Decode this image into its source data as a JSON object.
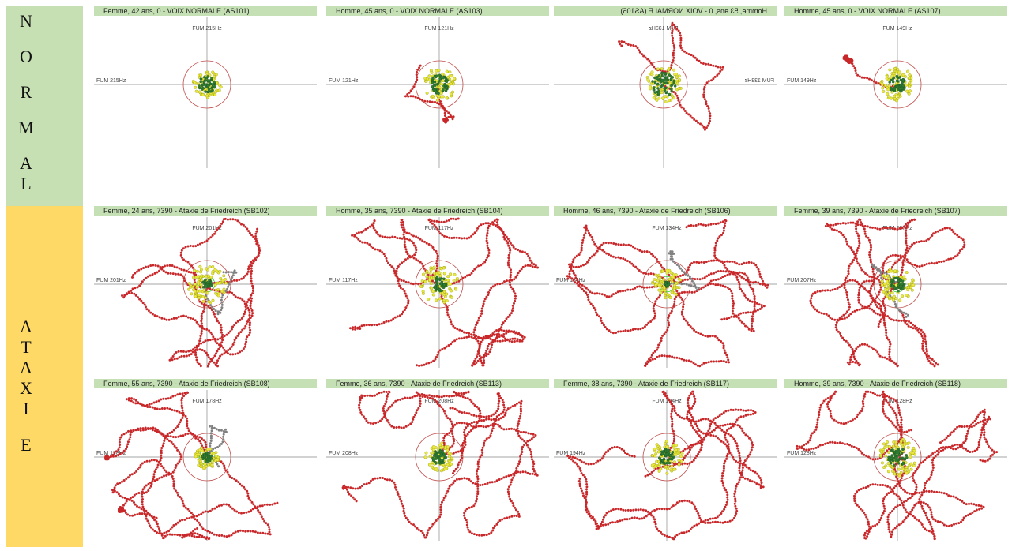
{
  "band_normal": {
    "letters": [
      "N",
      "O",
      "R",
      "M",
      "A",
      "L"
    ]
  },
  "band_ataxie": {
    "letters": [
      "A",
      "T",
      "A",
      "X",
      "I",
      "E"
    ]
  },
  "colors": {
    "band_normal": "#c6e0b4",
    "band_ataxie": "#ffd966",
    "header": "#c5e0b4",
    "axis": "#888888",
    "ref_circle": "#c0504d",
    "inner_circle": "#22cc22",
    "point_red": "#c8282a",
    "point_yellow": "#e8e840",
    "point_green": "#2e7d32",
    "point_gray": "#808080"
  },
  "chart_data": [
    {
      "type": "scatter",
      "title": "Femme, 42 ans,  0 -  VOIX NORMALE (AS101)",
      "x_axis_label": "FUM 215Hz",
      "y_axis_label": "FUM 215Hz",
      "mirrored": false,
      "inner_circle": false,
      "spread_red": 0,
      "spread_yellow": 0.6,
      "spread_green": 0.35
    },
    {
      "type": "scatter",
      "title": "Homme, 45 ans,  0 -  VOIX NORMALE (AS103)",
      "x_axis_label": "FUM 121Hz",
      "y_axis_label": "FUM 121Hz",
      "mirrored": false,
      "inner_circle": false,
      "spread_red": 0.15,
      "spread_yellow": 0.7,
      "spread_green": 0.4
    },
    {
      "type": "scatter",
      "title": "Homme, 53 ans,  0 -  VOIX NORMALE (AS105)",
      "x_axis_label": "FUM 133Hz",
      "y_axis_label": "FUM 133Hz",
      "mirrored": true,
      "inner_circle": false,
      "spread_red": 0.5,
      "spread_yellow": 0.75,
      "spread_green": 0.5
    },
    {
      "type": "scatter",
      "title": "Homme, 45 ans,  0 -  VOIX NORMALE (AS107)",
      "x_axis_label": "FUM 149Hz",
      "y_axis_label": "FUM 149Hz",
      "mirrored": false,
      "inner_circle": false,
      "spread_red": 0.35,
      "spread_yellow": 0.7,
      "spread_green": 0.35
    },
    {
      "type": "scatter",
      "title": "Femme, 24 ans, 7390 -  Ataxie de Friedreich (SB102)",
      "x_axis_label": "FUM 201Hz",
      "y_axis_label": "FUM 201Hz",
      "mirrored": false,
      "inner_circle": true,
      "spread_red": 0.8,
      "spread_yellow": 0.8,
      "spread_green": 0.2
    },
    {
      "type": "scatter",
      "title": "Homme, 35 ans, 7390 -  Ataxie de Friedreich (SB104)",
      "x_axis_label": "FUM 117Hz",
      "y_axis_label": "FUM 117Hz",
      "mirrored": false,
      "inner_circle": false,
      "spread_red": 1.0,
      "spread_yellow": 0.8,
      "spread_green": 0.3
    },
    {
      "type": "scatter",
      "title": "Homme, 46 ans, 7390 -  Ataxie de Friedreich (SB106)",
      "x_axis_label": "FUM 134Hz",
      "y_axis_label": "FUM 134Hz",
      "mirrored": false,
      "inner_circle": true,
      "spread_red": 1.0,
      "spread_yellow": 0.6,
      "spread_green": 0.1
    },
    {
      "type": "scatter",
      "title": "Femme, 39 ans, 7390 -  Ataxie de Friedreich (SB107)",
      "x_axis_label": "FUM 207Hz",
      "y_axis_label": "FUM 207Hz",
      "mirrored": false,
      "inner_circle": true,
      "spread_red": 0.9,
      "spread_yellow": 0.7,
      "spread_green": 0.3
    },
    {
      "type": "scatter",
      "title": "Femme, 55 ans, 7390 -  Ataxie de Friedreich (SB108)",
      "x_axis_label": "FUM 178Hz",
      "y_axis_label": "FUM 178Hz",
      "mirrored": false,
      "inner_circle": true,
      "spread_red": 1.0,
      "spread_yellow": 0.5,
      "spread_green": 0.2
    },
    {
      "type": "scatter",
      "title": "Femme, 36 ans, 7390 -  Ataxie de Friedreich (SB113)",
      "x_axis_label": "FUM 208Hz",
      "y_axis_label": "FUM 208Hz",
      "mirrored": false,
      "inner_circle": false,
      "spread_red": 1.0,
      "spread_yellow": 0.6,
      "spread_green": 0.3
    },
    {
      "type": "scatter",
      "title": "Femme, 38 ans, 7390 -  Ataxie de Friedreich (SB117)",
      "x_axis_label": "FUM 194Hz",
      "y_axis_label": "FUM 194Hz",
      "mirrored": false,
      "inner_circle": false,
      "spread_red": 1.0,
      "spread_yellow": 0.7,
      "spread_green": 0.35
    },
    {
      "type": "scatter",
      "title": "Homme, 39 ans, 7390 -  Ataxie de Friedreich (SB118)",
      "x_axis_label": "FUM 128Hz",
      "y_axis_label": "FUM 128Hz",
      "mirrored": false,
      "inner_circle": false,
      "spread_red": 1.0,
      "spread_yellow": 0.8,
      "spread_green": 0.4
    }
  ]
}
